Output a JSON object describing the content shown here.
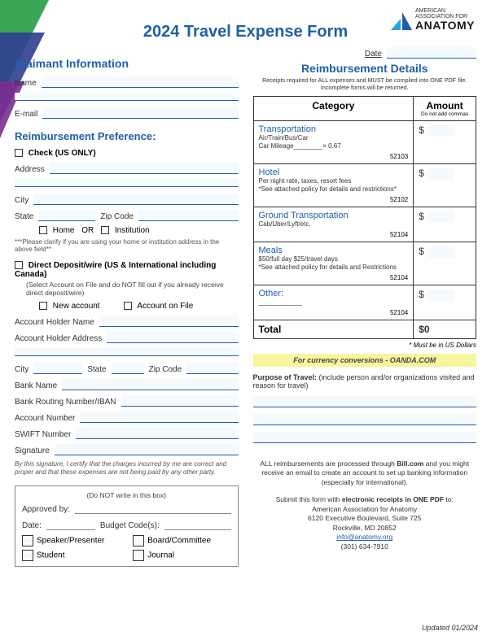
{
  "title": "2024 Travel Expense Form",
  "org": {
    "line1": "AMERICAN",
    "line2": "ASSOCIATION FOR",
    "big": "ANATOMY"
  },
  "claimant": {
    "heading": "Claimant Information",
    "name_label": "Name",
    "email_label": "E-mail"
  },
  "pref": {
    "heading": "Reimbursement Preference:",
    "check_label": "Check (US ONLY)",
    "address_label": "Address",
    "city_label": "City",
    "state_label": "State",
    "zip_label": "Zip Code",
    "home_label": "Home",
    "or_label": "OR",
    "inst_label": "Institution",
    "clarify": "***Please clarify if you are using your home or institution address in the above field**",
    "dd_label": "Direct Deposit/wire (US & International including Canada)",
    "dd_sub": "(Select Account on File and do NOT fill out if you already receive direct deposit/wire)",
    "new_acct": "New account",
    "on_file": "Account on File",
    "holder_name": "Account Holder Name",
    "holder_addr": "Account Holder Address",
    "bank_name": "Bank Name",
    "routing": "Bank Routing Number/IBAN",
    "acct_no": "Account Number",
    "swift": "SWIFT Number",
    "sig": "Signature",
    "cert": "By this signature, I certify that the charges incurred by me are correct and proper and that these expenses are not being paid by any other party."
  },
  "approval": {
    "box_note": "(Do NOT write in this box)",
    "approved": "Approved by:",
    "date": "Date:",
    "budget": "Budget Code(s):",
    "c1": "Speaker/Presenter",
    "c2": "Board/Committee",
    "c3": "Student",
    "c4": "Journal"
  },
  "date_label": "Date",
  "reimb": {
    "heading": "Reimbursement Details",
    "sub": "Receipts required for ALL expenses and MUST be complied into ONE PDF file. Incomplete forms will be returned.",
    "cat_h": "Category",
    "amt_h": "Amount",
    "amt_sub": "Do not add commas",
    "rows": [
      {
        "title": "Transportation",
        "desc": "Air/Train/Bus/Car",
        "extra": "Car Mileage________× 0.67",
        "code": "52103"
      },
      {
        "title": "Hotel",
        "desc": "Per night rate, taxes, resort fees\n*See attached policy for details and restrictions*",
        "code": "52102"
      },
      {
        "title": "Ground Transportation",
        "desc": "Cab/Uber/Lyft/etc.",
        "code": "52104"
      },
      {
        "title": "Meals",
        "desc": "$50/full day $25/travel days\n*See attached policy for details and Restrictions",
        "code": "52104"
      },
      {
        "title": "Other:",
        "desc": "____________",
        "code": "52104"
      }
    ],
    "total": "Total",
    "total_val": "0",
    "note": "* Must be in US Dollars",
    "yellow": "For currency conversions - OANDA.COM",
    "purpose": "Purpose of Travel: (include person and/or organizations visited and reason for travel)"
  },
  "footer": {
    "p1": "ALL reimbursements are processed through Bill.com and you might receive an email to create an account to set up banking information (especially for international).",
    "p2a": "Submit this form with ",
    "p2b": "electronic receipts in ONE PDF",
    "p2c": " to:",
    "addr1": "American Association for Anatomy",
    "addr2": "6120 Executive Boulevard, Suite 725",
    "addr3": "Rockville, MD 20852",
    "email": "info@anatomy.org",
    "phone": "(301) 634-7910"
  },
  "updated": "Updated 01/2024"
}
